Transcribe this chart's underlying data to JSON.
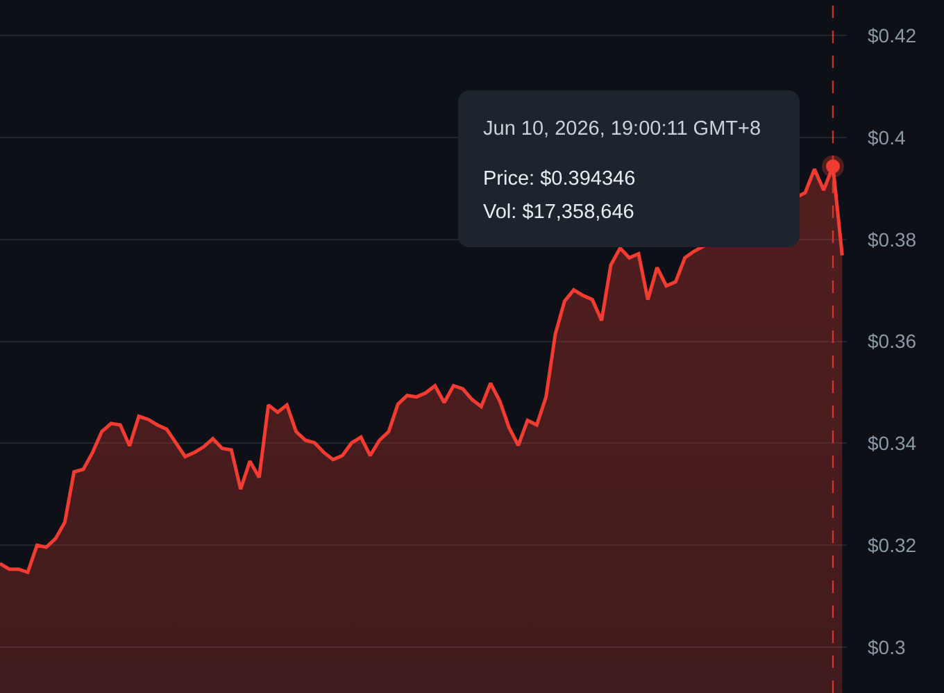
{
  "chart_data": {
    "type": "area",
    "categories": [
      null,
      null,
      null,
      null,
      null,
      null,
      null,
      null,
      null,
      null,
      null,
      null,
      null,
      null,
      null,
      null,
      null,
      null,
      null,
      null,
      null,
      null,
      null,
      null,
      null,
      null,
      null,
      null,
      null,
      null,
      null,
      null,
      null,
      null,
      null,
      null,
      null,
      null,
      null,
      null,
      null,
      null,
      null,
      null,
      null,
      null,
      null,
      null,
      null,
      null,
      null,
      null,
      null,
      null,
      null,
      null,
      null,
      null,
      null,
      null,
      null,
      null,
      null,
      null,
      null,
      null,
      null,
      null,
      null,
      null,
      null,
      null,
      null,
      null,
      null,
      null,
      null,
      null,
      null,
      null,
      null,
      null,
      null,
      null,
      null,
      null,
      null,
      null,
      null,
      null,
      null,
      null
    ],
    "series": [
      {
        "color": "#f23c32",
        "values": [
          0.3164,
          0.3153,
          0.3153,
          0.3147,
          0.32,
          0.3196,
          0.3213,
          0.3245,
          0.3344,
          0.3349,
          0.3382,
          0.3423,
          0.3439,
          0.3436,
          0.3395,
          0.3453,
          0.3447,
          0.3436,
          0.3428,
          0.3401,
          0.3374,
          0.3382,
          0.3393,
          0.3409,
          0.339,
          0.3387,
          0.331,
          0.3365,
          0.3333,
          0.3475,
          0.3461,
          0.3475,
          0.3423,
          0.3406,
          0.3401,
          0.3382,
          0.3368,
          0.3376,
          0.3401,
          0.3412,
          0.3376,
          0.3406,
          0.3423,
          0.3477,
          0.3494,
          0.3491,
          0.3499,
          0.3513,
          0.348,
          0.3513,
          0.3507,
          0.3486,
          0.3472,
          0.3518,
          0.3483,
          0.3431,
          0.3396,
          0.3445,
          0.3436,
          0.3491,
          0.3614,
          0.3679,
          0.3701,
          0.369,
          0.3682,
          0.3641,
          0.375,
          0.3783,
          0.3764,
          0.3772,
          0.3682,
          0.3745,
          0.3709,
          0.3717,
          0.3764,
          0.3777,
          null,
          null,
          null,
          null,
          null,
          null,
          null,
          null,
          null,
          null,
          null,
          0.3892,
          0.3938,
          0.3897,
          0.394346,
          0.3769
        ]
      },
      {
        "type": "scatter",
        "marker": "circle",
        "color": "#f23c32",
        "values": [
          null,
          null,
          null,
          null,
          null,
          null,
          null,
          null,
          null,
          null,
          null,
          null,
          null,
          null,
          null,
          null,
          null,
          null,
          null,
          null,
          null,
          null,
          null,
          null,
          null,
          null,
          null,
          null,
          null,
          null,
          null,
          null,
          null,
          null,
          null,
          null,
          null,
          null,
          null,
          null,
          null,
          null,
          null,
          null,
          null,
          null,
          null,
          null,
          null,
          null,
          null,
          null,
          null,
          null,
          null,
          null,
          null,
          null,
          null,
          null,
          null,
          null,
          null,
          null,
          null,
          null,
          null,
          null,
          null,
          null,
          null,
          null,
          null,
          null,
          null,
          null,
          null,
          null,
          null,
          null,
          null,
          null,
          null,
          null,
          null,
          null,
          null,
          null,
          null,
          null,
          0.394346,
          null
        ]
      }
    ],
    "ylim": [
      0.291,
      0.427
    ],
    "yticks": [
      {
        "value": 0.3,
        "label": "$0.3"
      },
      {
        "value": 0.32,
        "label": "$0.32"
      },
      {
        "value": 0.34,
        "label": "$0.34"
      },
      {
        "value": 0.36,
        "label": "$0.36"
      },
      {
        "value": 0.38,
        "label": "$0.38"
      },
      {
        "value": 0.4,
        "label": "$0.4"
      },
      {
        "value": 0.42,
        "label": "$0.42"
      }
    ],
    "grid": "y",
    "tick_labels": "y",
    "annotations": [
      "Jun 10, 2026, 19:00:11 GMT+8",
      "Price: $0.394346",
      "Vol: $17,358,646"
    ]
  }
}
